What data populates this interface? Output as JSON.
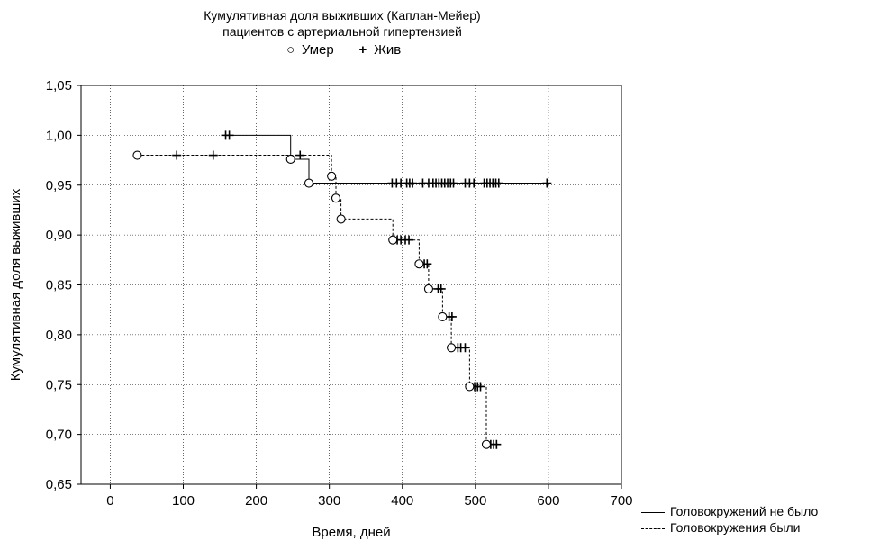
{
  "chart_data": {
    "type": "line",
    "title": "Кумулятивная доля выживших (Каплан-Мейер)",
    "subtitle": "пациентов с артериальной гипертензией",
    "xlabel": "Время, дней",
    "ylabel": "Кумулятивная доля выживших",
    "xlim": [
      -40,
      700
    ],
    "ylim": [
      0.65,
      1.05
    ],
    "x_ticks": [
      "0",
      "100",
      "200",
      "300",
      "400",
      "500",
      "600",
      "700"
    ],
    "y_ticks": [
      "0,65",
      "0,70",
      "0,75",
      "0,80",
      "0,85",
      "0,90",
      "0,95",
      "1,00",
      "1,05"
    ],
    "grid": true,
    "marker_legend": [
      {
        "symbol": "○",
        "label": "Умер"
      },
      {
        "symbol": "+",
        "label": "Жив"
      }
    ],
    "series": [
      {
        "name": "Головокружений не было",
        "line_style": "solid",
        "steps": [
          [
            158,
            1.0
          ],
          [
            247,
            1.0
          ],
          [
            247,
            0.976
          ],
          [
            272,
            0.976
          ],
          [
            272,
            0.952
          ],
          [
            598,
            0.952
          ]
        ],
        "events": [
          [
            247,
            0.976
          ],
          [
            272,
            0.952
          ]
        ],
        "censored": [
          [
            158,
            1.0
          ],
          [
            163,
            1.0
          ],
          [
            386,
            0.952
          ],
          [
            392,
            0.952
          ],
          [
            398,
            0.952
          ],
          [
            406,
            0.952
          ],
          [
            410,
            0.952
          ],
          [
            414,
            0.952
          ],
          [
            428,
            0.952
          ],
          [
            436,
            0.952
          ],
          [
            442,
            0.952
          ],
          [
            446,
            0.952
          ],
          [
            450,
            0.952
          ],
          [
            454,
            0.952
          ],
          [
            458,
            0.952
          ],
          [
            462,
            0.952
          ],
          [
            466,
            0.952
          ],
          [
            470,
            0.952
          ],
          [
            486,
            0.952
          ],
          [
            492,
            0.952
          ],
          [
            498,
            0.952
          ],
          [
            512,
            0.952
          ],
          [
            516,
            0.952
          ],
          [
            520,
            0.952
          ],
          [
            524,
            0.952
          ],
          [
            528,
            0.952
          ],
          [
            532,
            0.952
          ],
          [
            598,
            0.952
          ]
        ]
      },
      {
        "name": "Головокружения были",
        "line_style": "dashed",
        "steps": [
          [
            37,
            0.98
          ],
          [
            303,
            0.98
          ],
          [
            303,
            0.959
          ],
          [
            309,
            0.959
          ],
          [
            309,
            0.937
          ],
          [
            316,
            0.937
          ],
          [
            316,
            0.916
          ],
          [
            387,
            0.916
          ],
          [
            387,
            0.895
          ],
          [
            423,
            0.895
          ],
          [
            423,
            0.871
          ],
          [
            436,
            0.871
          ],
          [
            436,
            0.846
          ],
          [
            455,
            0.846
          ],
          [
            455,
            0.818
          ],
          [
            467,
            0.818
          ],
          [
            467,
            0.787
          ],
          [
            492,
            0.787
          ],
          [
            492,
            0.748
          ],
          [
            515,
            0.748
          ],
          [
            515,
            0.69
          ],
          [
            532,
            0.69
          ]
        ],
        "events": [
          [
            37,
            0.98
          ],
          [
            303,
            0.959
          ],
          [
            309,
            0.937
          ],
          [
            316,
            0.916
          ],
          [
            387,
            0.895
          ],
          [
            423,
            0.871
          ],
          [
            436,
            0.846
          ],
          [
            455,
            0.818
          ],
          [
            467,
            0.787
          ],
          [
            492,
            0.748
          ],
          [
            515,
            0.69
          ]
        ],
        "censored": [
          [
            91,
            0.98
          ],
          [
            141,
            0.98
          ],
          [
            260,
            0.98
          ],
          [
            393,
            0.895
          ],
          [
            398,
            0.895
          ],
          [
            404,
            0.895
          ],
          [
            409,
            0.895
          ],
          [
            430,
            0.871
          ],
          [
            434,
            0.871
          ],
          [
            449,
            0.846
          ],
          [
            453,
            0.846
          ],
          [
            464,
            0.818
          ],
          [
            468,
            0.818
          ],
          [
            476,
            0.787
          ],
          [
            480,
            0.787
          ],
          [
            486,
            0.787
          ],
          [
            499,
            0.748
          ],
          [
            503,
            0.748
          ],
          [
            507,
            0.748
          ],
          [
            521,
            0.69
          ],
          [
            525,
            0.69
          ],
          [
            529,
            0.69
          ]
        ]
      }
    ]
  }
}
